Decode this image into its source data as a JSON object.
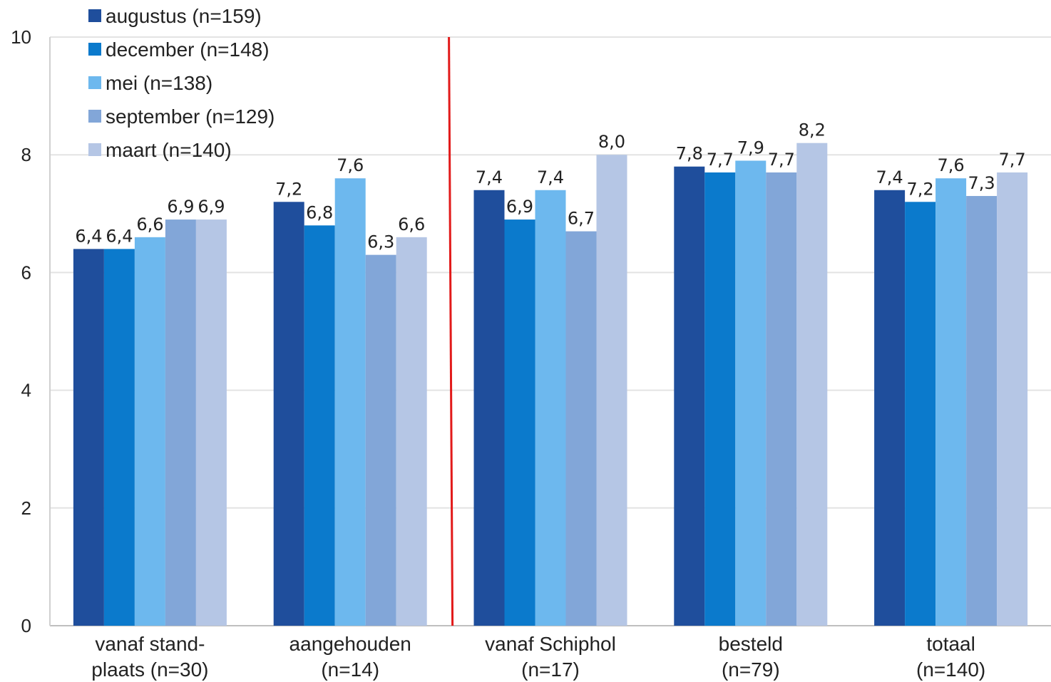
{
  "chart_data": {
    "type": "bar",
    "categories": [
      [
        "vanaf stand-",
        "plaats (n=30)"
      ],
      [
        "aangehouden",
        "(n=14)"
      ],
      [
        "vanaf Schiphol",
        "(n=17)"
      ],
      [
        "besteld",
        "(n=79)"
      ],
      [
        "totaal",
        "(n=140)"
      ]
    ],
    "series": [
      {
        "name": "augustus (n=159)",
        "color": "#1f4e9c",
        "values": [
          6.4,
          7.2,
          7.4,
          7.8,
          7.4
        ],
        "labels": [
          "6,4",
          "7,2",
          "7,4",
          "7,8",
          "7,4"
        ]
      },
      {
        "name": "december (n=148)",
        "color": "#0b7acc",
        "values": [
          6.4,
          6.8,
          6.9,
          7.7,
          7.2
        ],
        "labels": [
          "6,4",
          "6,8",
          "6,9",
          "7,7",
          "7,2"
        ]
      },
      {
        "name": "mei (n=138)",
        "color": "#6db8ee",
        "values": [
          6.6,
          7.6,
          7.4,
          7.9,
          7.6
        ],
        "labels": [
          "6,6",
          "7,6",
          "7,4",
          "7,9",
          "7,6"
        ]
      },
      {
        "name": "september (n=129)",
        "color": "#82a6d8",
        "values": [
          6.9,
          6.3,
          6.7,
          7.7,
          7.3
        ],
        "labels": [
          "6,9",
          "6,3",
          "6,7",
          "7,7",
          "7,3"
        ]
      },
      {
        "name": "maart (n=140)",
        "color": "#b5c6e5",
        "values": [
          6.9,
          6.6,
          8.0,
          8.2,
          7.7
        ],
        "labels": [
          "6,9",
          "6,6",
          "8,0",
          "8,2",
          "7,7"
        ]
      }
    ],
    "ylim": [
      0,
      10
    ],
    "yticks": [
      "0",
      "2",
      "4",
      "6",
      "8",
      "10"
    ],
    "grid": true,
    "legend": "top-left",
    "separator": {
      "after_category": 1,
      "color": "#e21a1a"
    },
    "title": "",
    "xlabel": "",
    "ylabel": ""
  }
}
